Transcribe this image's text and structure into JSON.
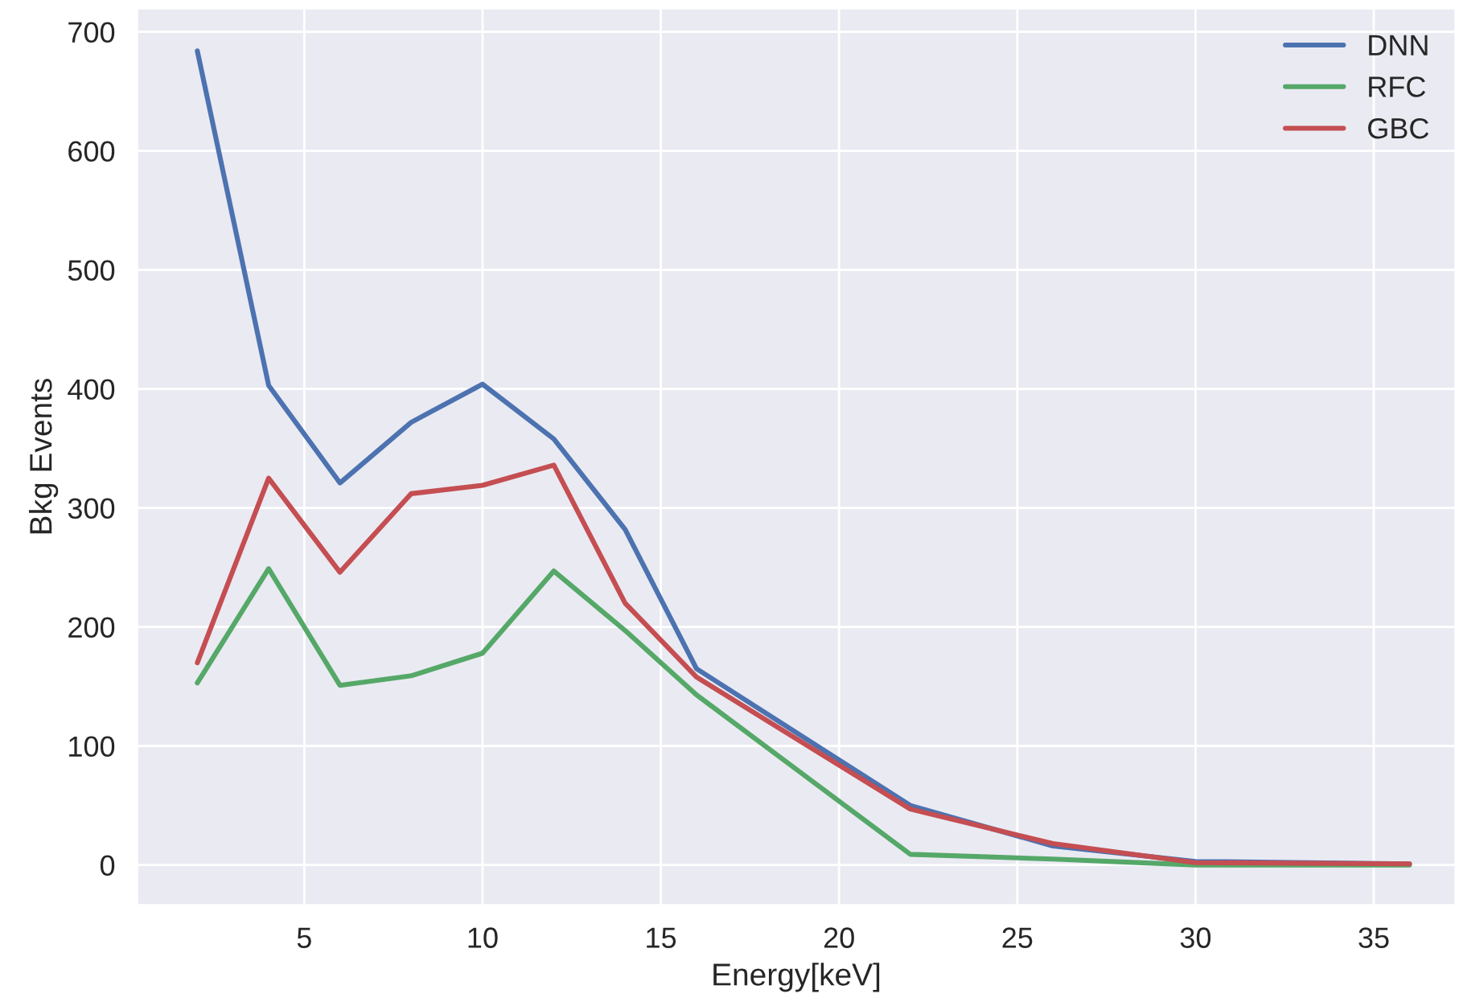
{
  "chart_data": {
    "type": "line",
    "xlabel": "Energy[keV]",
    "ylabel": "Bkg Events",
    "x": [
      2,
      4,
      6,
      8,
      10,
      12,
      14,
      16,
      22,
      26,
      30,
      36
    ],
    "series": [
      {
        "name": "DNN",
        "color": "#4c72b0",
        "values": [
          684,
          403,
          321,
          372,
          404,
          358,
          282,
          165,
          50,
          16,
          3,
          1
        ]
      },
      {
        "name": "RFC",
        "color": "#55a868",
        "values": [
          153,
          249,
          151,
          159,
          178,
          247,
          197,
          143,
          9,
          5,
          0,
          0
        ]
      },
      {
        "name": "GBC",
        "color": "#c44e52",
        "values": [
          170,
          325,
          246,
          312,
          319,
          336,
          220,
          158,
          47,
          18,
          2,
          1
        ]
      }
    ],
    "xlim": [
      0.3,
      37.3
    ],
    "ylim": [
      -34,
      720
    ],
    "xticks": [
      5,
      10,
      15,
      20,
      25,
      30,
      35
    ],
    "yticks": [
      0,
      100,
      200,
      300,
      400,
      500,
      600,
      700
    ],
    "grid": true,
    "legend": "top right"
  }
}
